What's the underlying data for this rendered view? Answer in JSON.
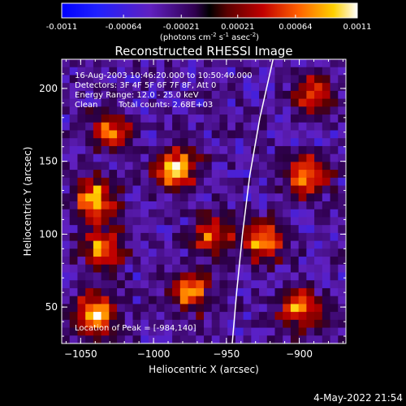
{
  "colorbar": {
    "tick_labels": [
      "-0.0011",
      "-0.00064",
      "-0.00021",
      "0.00021",
      "0.00064",
      "0.0011"
    ],
    "units_label_prefix": "(photons cm",
    "units_exp1": "-2",
    "units_mid": " s",
    "units_exp2": "-1",
    "units_mid2": " asec",
    "units_exp3": "-2",
    "units_suffix": ")",
    "range": [
      -0.0011,
      0.0011
    ]
  },
  "plot": {
    "title": "Reconstructed RHESSI Image",
    "info": {
      "time_range": "16-Aug-2003 10:46:20.000 to 10:50:40.000",
      "detectors": "Detectors: 3F 4F 5F 6F 7F 8F, Att 0",
      "energy": "Energy Range: 12.0 - 25.0 keV",
      "method": "Clean",
      "counts": "Total counts: 2.68E+03"
    },
    "peak_label": "Location of Peak = [-984,140]"
  },
  "chart_data": {
    "type": "heatmap",
    "title": "Reconstructed RHESSI Image",
    "xlabel": "Heliocentric X (arcsec)",
    "ylabel": "Heliocentric Y (arcsec)",
    "xlim": [
      -1063,
      -868
    ],
    "ylim": [
      25,
      220
    ],
    "x_ticks": [
      -1050,
      -1000,
      -950,
      -900
    ],
    "y_ticks": [
      50,
      100,
      150,
      200
    ],
    "colormap": "rhessi-diverging",
    "peak_location": [
      -984,
      140
    ],
    "hotspots": [
      {
        "x": -985,
        "y": 145,
        "value": 0.0011
      },
      {
        "x": -1040,
        "y": 125,
        "value": 0.0009
      },
      {
        "x": -1040,
        "y": 45,
        "value": 0.0011
      },
      {
        "x": -1030,
        "y": 170,
        "value": 0.00064
      },
      {
        "x": -960,
        "y": 100,
        "value": 0.00064
      },
      {
        "x": -895,
        "y": 140,
        "value": 0.00085
      },
      {
        "x": -925,
        "y": 95,
        "value": 0.0009
      },
      {
        "x": -890,
        "y": 195,
        "value": 0.00064
      },
      {
        "x": -900,
        "y": 50,
        "value": 0.0008
      },
      {
        "x": -975,
        "y": 60,
        "value": 0.0007
      },
      {
        "x": -1035,
        "y": 90,
        "value": 0.0008
      }
    ],
    "limb_curve": [
      [
        -946,
        25
      ],
      [
        -943,
        60
      ],
      [
        -939,
        100
      ],
      [
        -934,
        140
      ],
      [
        -927,
        180
      ],
      [
        -918,
        220
      ]
    ]
  },
  "footer": {
    "timestamp": "4-May-2022 21:54"
  }
}
